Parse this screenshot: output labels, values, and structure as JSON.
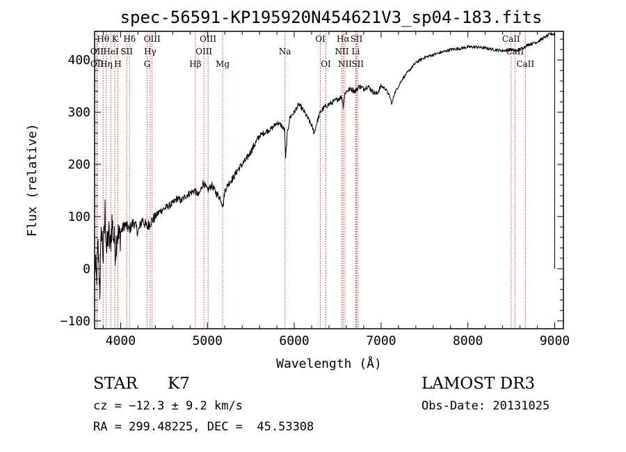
{
  "chart_data": {
    "type": "line",
    "title": "spec-56591-KP195920N454621V3_sp04-183.fits",
    "xlabel": "Wavelength (Å)",
    "ylabel": "Flux (relative)",
    "xlim": [
      3700,
      9100
    ],
    "ylim": [
      -115,
      455
    ],
    "xticks": [
      4000,
      5000,
      6000,
      7000,
      8000,
      9000
    ],
    "xtick_labels": [
      "4000",
      "5000",
      "6000",
      "7000",
      "8000",
      "9000"
    ],
    "yticks": [
      -100,
      0,
      100,
      200,
      300,
      400
    ],
    "ytick_labels": [
      "−100",
      "0",
      "100",
      "200",
      "300",
      "400"
    ],
    "series": [
      {
        "name": "spectrum",
        "x": [
          3700,
          3720,
          3740,
          3760,
          3780,
          3800,
          3820,
          3840,
          3860,
          3880,
          3900,
          3920,
          3940,
          3960,
          3980,
          4000,
          4050,
          4100,
          4150,
          4200,
          4250,
          4300,
          4350,
          4400,
          4450,
          4500,
          4550,
          4600,
          4650,
          4700,
          4750,
          4800,
          4850,
          4900,
          4950,
          5000,
          5050,
          5100,
          5150,
          5180,
          5200,
          5250,
          5300,
          5350,
          5400,
          5450,
          5500,
          5550,
          5600,
          5650,
          5700,
          5750,
          5800,
          5850,
          5890,
          5900,
          5920,
          5950,
          6000,
          6050,
          6100,
          6150,
          6200,
          6230,
          6260,
          6300,
          6350,
          6400,
          6450,
          6500,
          6550,
          6563,
          6580,
          6600,
          6650,
          6700,
          6750,
          6800,
          6850,
          6900,
          6950,
          7000,
          7050,
          7100,
          7125,
          7150,
          7200,
          7250,
          7300,
          7350,
          7400,
          7500,
          7600,
          7700,
          7800,
          7900,
          8000,
          8100,
          8200,
          8300,
          8400,
          8500,
          8550,
          8600,
          8650,
          8700,
          8750,
          8800,
          8850,
          8900,
          8950,
          9000,
          9010
        ],
        "y": [
          10,
          -20,
          40,
          -40,
          80,
          20,
          110,
          30,
          70,
          40,
          90,
          60,
          35,
          75,
          55,
          70,
          85,
          75,
          90,
          70,
          95,
          80,
          90,
          100,
          110,
          115,
          120,
          125,
          135,
          130,
          140,
          145,
          150,
          140,
          165,
          150,
          160,
          145,
          135,
          120,
          150,
          165,
          175,
          190,
          200,
          210,
          225,
          240,
          255,
          260,
          265,
          270,
          280,
          275,
          265,
          210,
          260,
          290,
          300,
          315,
          305,
          290,
          275,
          260,
          280,
          300,
          310,
          315,
          320,
          325,
          330,
          310,
          335,
          340,
          345,
          340,
          350,
          345,
          350,
          340,
          335,
          350,
          345,
          330,
          315,
          335,
          350,
          365,
          375,
          385,
          395,
          405,
          410,
          415,
          420,
          422,
          425,
          425,
          423,
          420,
          418,
          420,
          418,
          420,
          425,
          430,
          432,
          435,
          440,
          445,
          450,
          450,
          0
        ]
      }
    ],
    "spectral_lines": [
      {
        "name": "Hθ",
        "wavelength": 3798,
        "row": 1
      },
      {
        "name": "OII",
        "wavelength": 3727,
        "row": 2
      },
      {
        "name": "OII",
        "wavelength": 3729,
        "row": 3
      },
      {
        "name": "Hη",
        "wavelength": 3835,
        "row": 3
      },
      {
        "name": "HeI",
        "wavelength": 3889,
        "row": 2
      },
      {
        "name": "K",
        "wavelength": 3934,
        "row": 1
      },
      {
        "name": "H",
        "wavelength": 3968,
        "row": 3
      },
      {
        "name": "SII",
        "wavelength": 4070,
        "row": 2
      },
      {
        "name": "Hδ",
        "wavelength": 4102,
        "row": 1
      },
      {
        "name": "OIII",
        "wavelength": 4363,
        "row": 1
      },
      {
        "name": "Hγ",
        "wavelength": 4340,
        "row": 2
      },
      {
        "name": "G",
        "wavelength": 4305,
        "row": 3
      },
      {
        "name": "Hβ",
        "wavelength": 4861,
        "row": 3
      },
      {
        "name": "OIII",
        "wavelength": 5007,
        "row": 1
      },
      {
        "name": "OIII",
        "wavelength": 4959,
        "row": 2
      },
      {
        "name": "Mg",
        "wavelength": 5175,
        "row": 3
      },
      {
        "name": "Na",
        "wavelength": 5893,
        "row": 2
      },
      {
        "name": "OI",
        "wavelength": 6300,
        "row": 1
      },
      {
        "name": "OI",
        "wavelength": 6364,
        "row": 3
      },
      {
        "name": "Hα",
        "wavelength": 6563,
        "row": 1
      },
      {
        "name": "NII",
        "wavelength": 6548,
        "row": 2
      },
      {
        "name": "NII",
        "wavelength": 6584,
        "row": 3
      },
      {
        "name": "SII",
        "wavelength": 6717,
        "row": 1
      },
      {
        "name": "Li",
        "wavelength": 6708,
        "row": 2
      },
      {
        "name": "SII",
        "wavelength": 6731,
        "row": 3
      },
      {
        "name": "CaII",
        "wavelength": 8498,
        "row": 1
      },
      {
        "name": "CaII",
        "wavelength": 8542,
        "row": 2
      },
      {
        "name": "CaII",
        "wavelength": 8662,
        "row": 3
      }
    ]
  },
  "info": {
    "object_class": "STAR",
    "subclass": "K7",
    "survey": "LAMOST DR3",
    "redshift": "cz = −12.3 ± 9.2 km/s",
    "obs_date": "Obs-Date: 20131025",
    "coords": "RA = 299.48225, DEC =  45.53308"
  },
  "colors": {
    "spectrum": "#000000",
    "line_markers": "#cc0000",
    "background": "#ffffff"
  }
}
